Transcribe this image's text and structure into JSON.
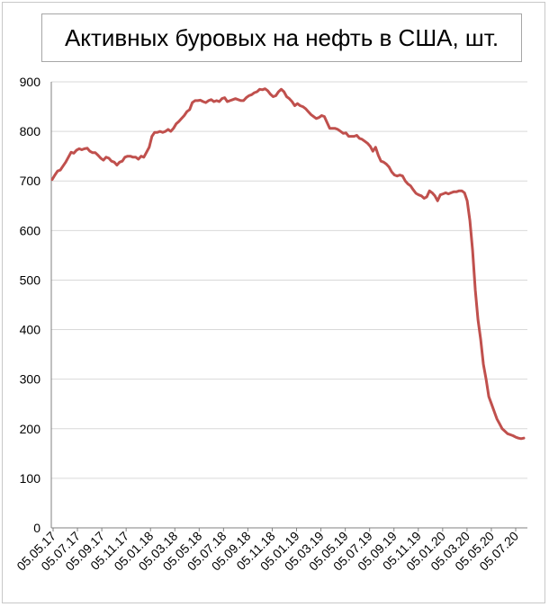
{
  "colors": {
    "line": "#c0504d",
    "grid": "#d9d9d9",
    "axis": "#808080"
  },
  "chart_data": {
    "type": "line",
    "title": "Активных буровых на нефть в США, шт.",
    "xlabel": "",
    "ylabel": "",
    "ylim": [
      0,
      900
    ],
    "yticks": [
      0,
      100,
      200,
      300,
      400,
      500,
      600,
      700,
      800,
      900
    ],
    "xtick_labels": [
      "05.05.17",
      "05.07.17",
      "05.09.17",
      "05.11.17",
      "05.01.18",
      "05.03.18",
      "05.05.18",
      "05.07.18",
      "05.09.18",
      "05.11.18",
      "05.01.19",
      "05.03.19",
      "05.05.19",
      "05.07.19",
      "05.09.19",
      "05.11.19",
      "05.01.20",
      "05.03.20",
      "05.05.20",
      "05.07.20"
    ],
    "grid": true,
    "legend": "none",
    "series": [
      {
        "values": [
          703,
          712,
          720,
          722,
          730,
          738,
          748,
          758,
          756,
          762,
          765,
          763,
          765,
          766,
          760,
          757,
          757,
          752,
          746,
          742,
          748,
          746,
          740,
          738,
          732,
          738,
          740,
          748,
          750,
          750,
          748,
          748,
          744,
          750,
          748,
          758,
          768,
          790,
          798,
          798,
          800,
          798,
          800,
          804,
          800,
          806,
          815,
          820,
          826,
          832,
          840,
          844,
          858,
          862,
          862,
          863,
          860,
          858,
          862,
          864,
          860,
          862,
          860,
          866,
          868,
          860,
          862,
          864,
          866,
          864,
          862,
          862,
          868,
          872,
          874,
          878,
          880,
          885,
          884,
          886,
          882,
          875,
          870,
          872,
          880,
          885,
          880,
          870,
          866,
          860,
          852,
          856,
          852,
          850,
          846,
          840,
          834,
          830,
          826,
          828,
          832,
          830,
          818,
          806,
          806,
          806,
          804,
          800,
          796,
          797,
          790,
          790,
          790,
          792,
          786,
          784,
          780,
          776,
          770,
          760,
          768,
          752,
          740,
          738,
          734,
          728,
          718,
          712,
          710,
          712,
          710,
          700,
          694,
          690,
          682,
          675,
          672,
          670,
          665,
          668,
          680,
          676,
          670,
          660,
          672,
          674,
          676,
          674,
          676,
          678,
          678,
          680,
          680,
          676,
          660,
          620,
          560,
          480,
          420,
          380,
          330,
          300,
          265,
          250,
          235,
          220,
          210,
          200,
          195,
          190,
          188,
          186,
          183,
          181,
          180,
          181
        ]
      }
    ]
  }
}
